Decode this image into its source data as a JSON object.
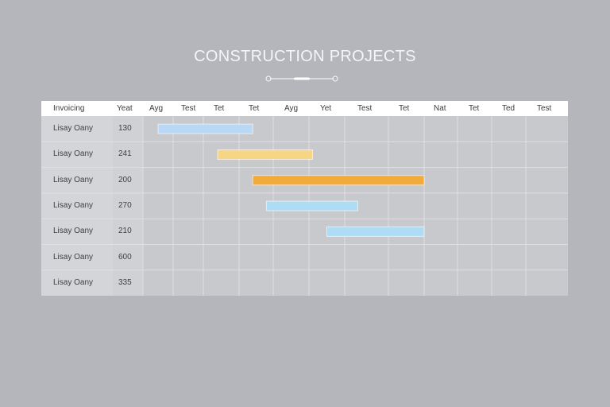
{
  "title": "CONSTRUCTION PROJECTS",
  "header": [
    "Invoicing",
    "Yeat",
    "Ayg",
    "Test",
    "Tet",
    "Tet",
    "Ayg",
    "Yet",
    "Test",
    "Tet",
    "Nat",
    "Tet",
    "Ted",
    "Test"
  ],
  "chart_data": {
    "type": "gantt",
    "title": "CONSTRUCTION PROJECTS",
    "columns": [
      "Ayg",
      "Test",
      "Tet",
      "Tet",
      "Ayg",
      "Yet",
      "Test",
      "Tet",
      "Nat",
      "Tet",
      "Ted",
      "Test"
    ],
    "rows": [
      {
        "label": "Lisay Oany",
        "value": "130",
        "start": 0.5,
        "end": 3.4,
        "color": "#b9d8f5"
      },
      {
        "label": "Lisay Oany",
        "value": "241",
        "start": 2.4,
        "end": 5.1,
        "color": "#f6d684"
      },
      {
        "label": "Lisay Oany",
        "value": "200",
        "start": 3.4,
        "end": 8.0,
        "color": "#f2ab38"
      },
      {
        "label": "Lisay Oany",
        "value": "270",
        "start": 3.8,
        "end": 6.3,
        "color": "#aedcf4"
      },
      {
        "label": "Lisay Oany",
        "value": "210",
        "start": 5.5,
        "end": 8.0,
        "color": "#aedcf4"
      },
      {
        "label": "Lisay Oany",
        "value": "600",
        "start": null,
        "end": null,
        "color": null
      },
      {
        "label": "Lisay Oany",
        "value": "335",
        "start": null,
        "end": null,
        "color": null
      }
    ]
  }
}
